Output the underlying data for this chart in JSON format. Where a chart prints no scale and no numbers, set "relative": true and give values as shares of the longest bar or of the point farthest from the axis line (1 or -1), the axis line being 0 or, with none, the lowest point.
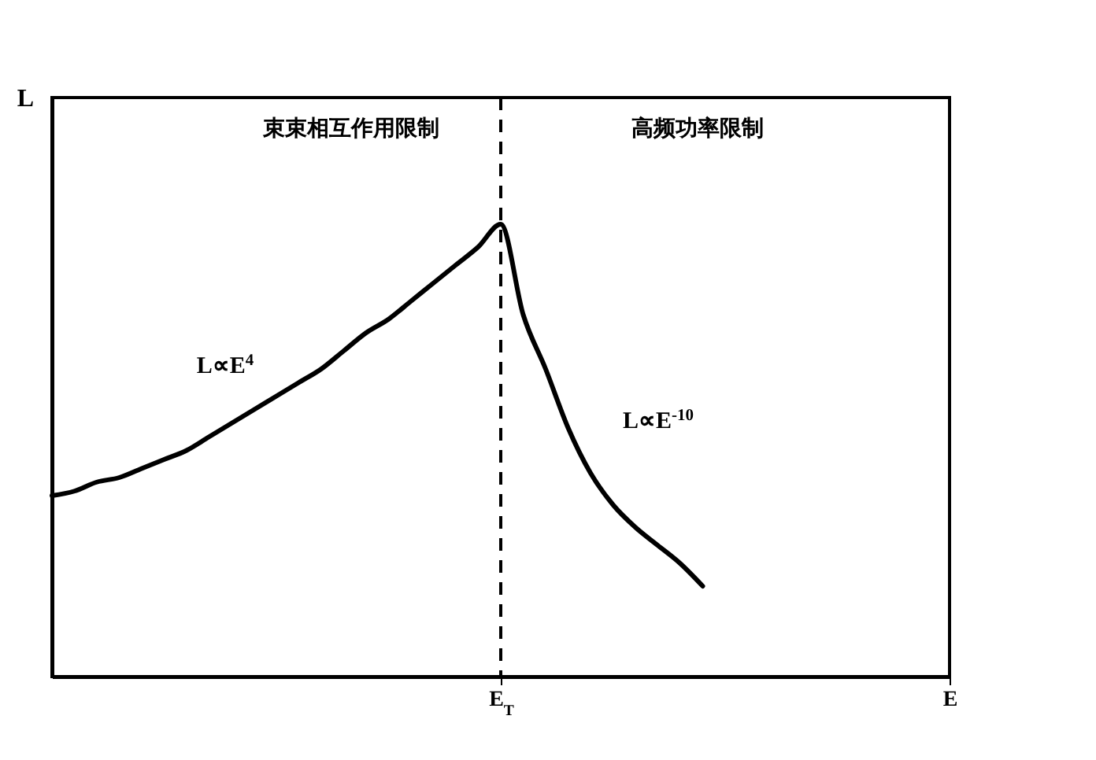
{
  "chart_data": {
    "type": "line",
    "relative": true,
    "ylabel": "L",
    "categories": [
      null,
      null,
      null,
      null,
      null,
      null,
      null,
      null,
      null,
      null,
      null,
      null,
      null,
      null,
      null,
      null,
      null,
      null,
      null,
      null,
      "E$_{T}$",
      null,
      null,
      null,
      null,
      null,
      null,
      null,
      null,
      null,
      null,
      null,
      null,
      null,
      null,
      null,
      null,
      null,
      null,
      null,
      "E"
    ],
    "series": [
      {
        "color": "#000000",
        "values": [
          0.4,
          0.41,
          0.43,
          0.44,
          0.46,
          0.48,
          0.5,
          0.53,
          0.56,
          0.59,
          0.62,
          0.65,
          0.68,
          0.72,
          0.76,
          0.79,
          0.83,
          0.87,
          0.91,
          0.95,
          1.0,
          0.8,
          0.68,
          0.55,
          0.45,
          0.38,
          0.33,
          0.29,
          0.25,
          0.2,
          null,
          null,
          null,
          null,
          null,
          null,
          null,
          null,
          null,
          null,
          null
        ]
      }
    ],
    "ref_lines": [
      {
        "axis": "x",
        "value": "E$_{T}$",
        "line_style": "dashed",
        "color": "#000000"
      }
    ],
    "annotations": [
      "束束相互作用限制",
      "高频功率限制",
      "L∝E$^{4}$",
      "L∝E$^{-10}$"
    ],
    "grid": false,
    "marker": "none",
    "line_style": "solid"
  }
}
